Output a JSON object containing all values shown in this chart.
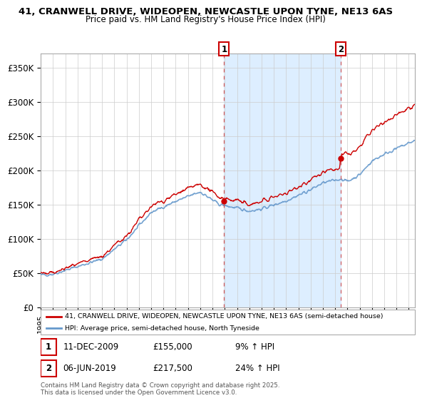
{
  "title_line1": "41, CRANWELL DRIVE, WIDEOPEN, NEWCASTLE UPON TYNE, NE13 6AS",
  "title_line2": "Price paid vs. HM Land Registry's House Price Index (HPI)",
  "background_color": "#ffffff",
  "plot_bg_color": "#ffffff",
  "grid_color": "#cccccc",
  "hpi_line_color": "#6699cc",
  "shade_color": "#ddeeff",
  "price_color": "#cc0000",
  "dashed_line_color": "#cc4444",
  "ylim": [
    0,
    370000
  ],
  "yticks": [
    0,
    50000,
    100000,
    150000,
    200000,
    250000,
    300000,
    350000
  ],
  "ytick_labels": [
    "£0",
    "£50K",
    "£100K",
    "£150K",
    "£200K",
    "£250K",
    "£300K",
    "£350K"
  ],
  "sale1_date": "11-DEC-2009",
  "sale1_price": 155000,
  "sale1_label": "£155,000",
  "sale1_pct": "9% ↑ HPI",
  "sale1_x": 2009.94,
  "sale2_date": "06-JUN-2019",
  "sale2_price": 217500,
  "sale2_label": "£217,500",
  "sale2_pct": "24% ↑ HPI",
  "sale2_x": 2019.44,
  "legend_label1": "41, CRANWELL DRIVE, WIDEOPEN, NEWCASTLE UPON TYNE, NE13 6AS (semi-detached house)",
  "legend_label2": "HPI: Average price, semi-detached house, North Tyneside",
  "footer": "Contains HM Land Registry data © Crown copyright and database right 2025.\nThis data is licensed under the Open Government Licence v3.0.",
  "xstart": 1995,
  "xend": 2025.5
}
